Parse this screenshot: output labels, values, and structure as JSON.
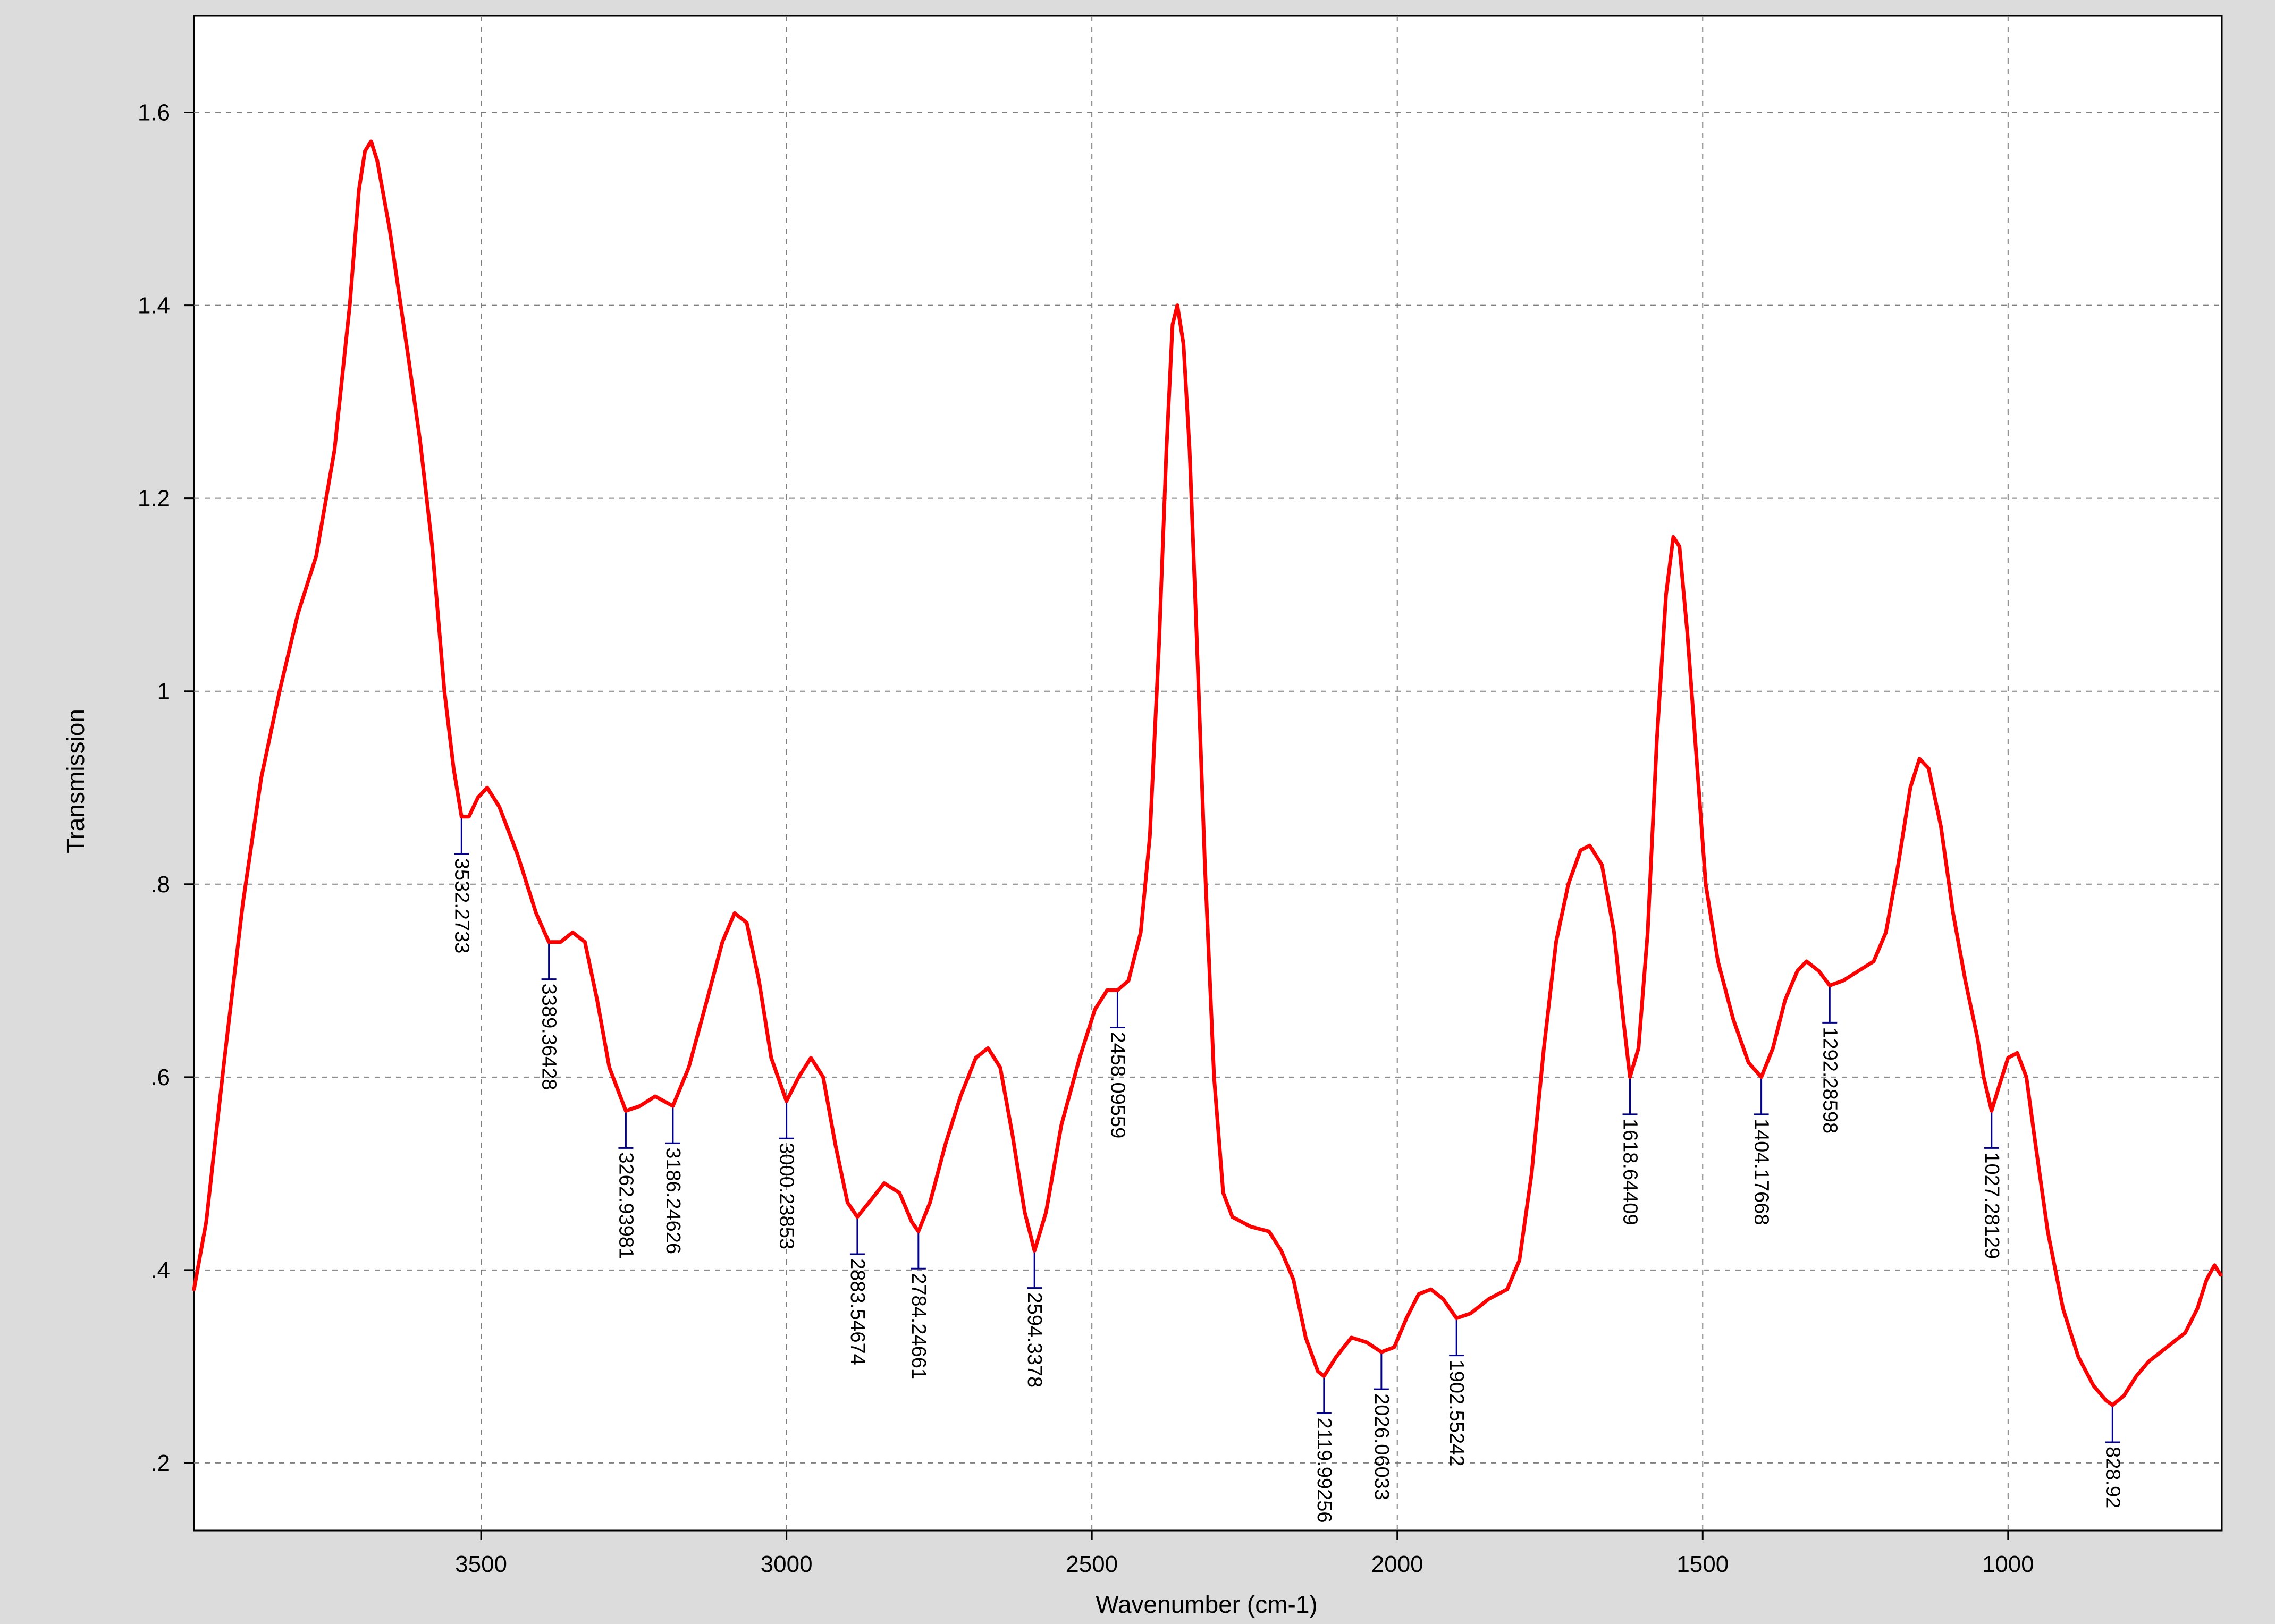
{
  "chart_data": {
    "type": "line",
    "title": "",
    "xlabel": "Wavenumber (cm-1)",
    "ylabel": "Transmission",
    "xlim": [
      3970,
      650
    ],
    "ylim": [
      0.13,
      1.7
    ],
    "x_reversed": true,
    "grid": true,
    "legend": "none",
    "x_ticks": [
      {
        "value": 3500,
        "label": "3500"
      },
      {
        "value": 3000,
        "label": "3000"
      },
      {
        "value": 2500,
        "label": "2500"
      },
      {
        "value": 2000,
        "label": "2000"
      },
      {
        "value": 1500,
        "label": "1500"
      },
      {
        "value": 1000,
        "label": "1000"
      }
    ],
    "y_ticks": [
      {
        "value": 0.2,
        "label": ".2"
      },
      {
        "value": 0.4,
        "label": ".4"
      },
      {
        "value": 0.6,
        "label": ".6"
      },
      {
        "value": 0.8,
        "label": ".8"
      },
      {
        "value": 1.0,
        "label": "1"
      },
      {
        "value": 1.2,
        "label": "1.2"
      },
      {
        "value": 1.4,
        "label": "1.4"
      },
      {
        "value": 1.6,
        "label": "1.6"
      }
    ],
    "series": [
      {
        "color": "#ff0000",
        "points": [
          [
            3970,
            0.38
          ],
          [
            3950,
            0.45
          ],
          [
            3920,
            0.62
          ],
          [
            3890,
            0.78
          ],
          [
            3860,
            0.91
          ],
          [
            3830,
            1.0
          ],
          [
            3800,
            1.08
          ],
          [
            3770,
            1.14
          ],
          [
            3740,
            1.25
          ],
          [
            3715,
            1.4
          ],
          [
            3700,
            1.52
          ],
          [
            3690,
            1.56
          ],
          [
            3680,
            1.57
          ],
          [
            3670,
            1.55
          ],
          [
            3650,
            1.48
          ],
          [
            3620,
            1.35
          ],
          [
            3600,
            1.26
          ],
          [
            3580,
            1.15
          ],
          [
            3560,
            1.0
          ],
          [
            3545,
            0.92
          ],
          [
            3532,
            0.87
          ],
          [
            3520,
            0.87
          ],
          [
            3505,
            0.89
          ],
          [
            3490,
            0.9
          ],
          [
            3470,
            0.88
          ],
          [
            3440,
            0.83
          ],
          [
            3410,
            0.77
          ],
          [
            3389,
            0.74
          ],
          [
            3370,
            0.74
          ],
          [
            3350,
            0.75
          ],
          [
            3330,
            0.74
          ],
          [
            3310,
            0.68
          ],
          [
            3290,
            0.61
          ],
          [
            3263,
            0.565
          ],
          [
            3240,
            0.57
          ],
          [
            3215,
            0.58
          ],
          [
            3186,
            0.57
          ],
          [
            3160,
            0.61
          ],
          [
            3130,
            0.68
          ],
          [
            3105,
            0.74
          ],
          [
            3085,
            0.77
          ],
          [
            3065,
            0.76
          ],
          [
            3045,
            0.7
          ],
          [
            3025,
            0.62
          ],
          [
            3000,
            0.575
          ],
          [
            2980,
            0.6
          ],
          [
            2960,
            0.62
          ],
          [
            2940,
            0.6
          ],
          [
            2920,
            0.53
          ],
          [
            2900,
            0.47
          ],
          [
            2884,
            0.455
          ],
          [
            2865,
            0.47
          ],
          [
            2840,
            0.49
          ],
          [
            2815,
            0.48
          ],
          [
            2795,
            0.45
          ],
          [
            2784,
            0.44
          ],
          [
            2765,
            0.47
          ],
          [
            2740,
            0.53
          ],
          [
            2715,
            0.58
          ],
          [
            2690,
            0.62
          ],
          [
            2670,
            0.63
          ],
          [
            2650,
            0.61
          ],
          [
            2630,
            0.54
          ],
          [
            2610,
            0.46
          ],
          [
            2594,
            0.42
          ],
          [
            2575,
            0.46
          ],
          [
            2550,
            0.55
          ],
          [
            2520,
            0.62
          ],
          [
            2495,
            0.67
          ],
          [
            2475,
            0.69
          ],
          [
            2458,
            0.69
          ],
          [
            2440,
            0.7
          ],
          [
            2420,
            0.75
          ],
          [
            2405,
            0.85
          ],
          [
            2390,
            1.05
          ],
          [
            2378,
            1.25
          ],
          [
            2368,
            1.38
          ],
          [
            2360,
            1.4
          ],
          [
            2350,
            1.36
          ],
          [
            2340,
            1.25
          ],
          [
            2328,
            1.05
          ],
          [
            2315,
            0.82
          ],
          [
            2300,
            0.6
          ],
          [
            2285,
            0.48
          ],
          [
            2270,
            0.455
          ],
          [
            2240,
            0.445
          ],
          [
            2210,
            0.44
          ],
          [
            2190,
            0.42
          ],
          [
            2170,
            0.39
          ],
          [
            2150,
            0.33
          ],
          [
            2130,
            0.295
          ],
          [
            2120,
            0.29
          ],
          [
            2100,
            0.31
          ],
          [
            2075,
            0.33
          ],
          [
            2050,
            0.325
          ],
          [
            2026,
            0.315
          ],
          [
            2005,
            0.32
          ],
          [
            1985,
            0.35
          ],
          [
            1965,
            0.375
          ],
          [
            1945,
            0.38
          ],
          [
            1925,
            0.37
          ],
          [
            1903,
            0.35
          ],
          [
            1880,
            0.355
          ],
          [
            1850,
            0.37
          ],
          [
            1820,
            0.38
          ],
          [
            1800,
            0.41
          ],
          [
            1780,
            0.5
          ],
          [
            1760,
            0.63
          ],
          [
            1740,
            0.74
          ],
          [
            1720,
            0.8
          ],
          [
            1700,
            0.835
          ],
          [
            1685,
            0.84
          ],
          [
            1665,
            0.82
          ],
          [
            1645,
            0.75
          ],
          [
            1630,
            0.66
          ],
          [
            1619,
            0.6
          ],
          [
            1605,
            0.63
          ],
          [
            1590,
            0.75
          ],
          [
            1575,
            0.95
          ],
          [
            1560,
            1.1
          ],
          [
            1548,
            1.16
          ],
          [
            1538,
            1.15
          ],
          [
            1525,
            1.06
          ],
          [
            1510,
            0.93
          ],
          [
            1495,
            0.8
          ],
          [
            1475,
            0.72
          ],
          [
            1450,
            0.66
          ],
          [
            1425,
            0.615
          ],
          [
            1404,
            0.6
          ],
          [
            1385,
            0.63
          ],
          [
            1365,
            0.68
          ],
          [
            1345,
            0.71
          ],
          [
            1330,
            0.72
          ],
          [
            1310,
            0.71
          ],
          [
            1292,
            0.695
          ],
          [
            1270,
            0.7
          ],
          [
            1245,
            0.71
          ],
          [
            1220,
            0.72
          ],
          [
            1200,
            0.75
          ],
          [
            1180,
            0.82
          ],
          [
            1160,
            0.9
          ],
          [
            1145,
            0.93
          ],
          [
            1130,
            0.92
          ],
          [
            1110,
            0.86
          ],
          [
            1090,
            0.77
          ],
          [
            1070,
            0.7
          ],
          [
            1050,
            0.64
          ],
          [
            1040,
            0.6
          ],
          [
            1027,
            0.565
          ],
          [
            1015,
            0.59
          ],
          [
            1000,
            0.62
          ],
          [
            985,
            0.625
          ],
          [
            970,
            0.6
          ],
          [
            955,
            0.53
          ],
          [
            935,
            0.44
          ],
          [
            910,
            0.36
          ],
          [
            885,
            0.31
          ],
          [
            860,
            0.28
          ],
          [
            840,
            0.265
          ],
          [
            829,
            0.26
          ],
          [
            810,
            0.27
          ],
          [
            790,
            0.29
          ],
          [
            770,
            0.305
          ],
          [
            740,
            0.32
          ],
          [
            710,
            0.335
          ],
          [
            690,
            0.36
          ],
          [
            675,
            0.39
          ],
          [
            662,
            0.405
          ],
          [
            652,
            0.395
          ]
        ]
      }
    ],
    "peak_labels": [
      {
        "x": 3532,
        "y": 0.87,
        "label": "3532.2733"
      },
      {
        "x": 3389,
        "y": 0.74,
        "label": "3389.36428"
      },
      {
        "x": 3263,
        "y": 0.565,
        "label": "3262.93981"
      },
      {
        "x": 3186,
        "y": 0.57,
        "label": "3186.24626"
      },
      {
        "x": 3000,
        "y": 0.575,
        "label": "3000.23853"
      },
      {
        "x": 2884,
        "y": 0.455,
        "label": "2883.54674"
      },
      {
        "x": 2784,
        "y": 0.44,
        "label": "2784.24661"
      },
      {
        "x": 2594,
        "y": 0.42,
        "label": "2594.3378"
      },
      {
        "x": 2458,
        "y": 0.69,
        "label": "2458.09559"
      },
      {
        "x": 2120,
        "y": 0.29,
        "label": "2119.99256"
      },
      {
        "x": 2026,
        "y": 0.315,
        "label": "2026.06033"
      },
      {
        "x": 1903,
        "y": 0.35,
        "label": "1902.55242"
      },
      {
        "x": 1619,
        "y": 0.6,
        "label": "1618.64409"
      },
      {
        "x": 1404,
        "y": 0.6,
        "label": "1404.17668"
      },
      {
        "x": 1292,
        "y": 0.695,
        "label": "1292.28598"
      },
      {
        "x": 1027,
        "y": 0.565,
        "label": "1027.28129"
      },
      {
        "x": 829,
        "y": 0.26,
        "label": "828.92"
      }
    ],
    "colors": {
      "line": "#ff0000",
      "marker": "#00008b",
      "grid": "#7f7f7f",
      "plot_background": "#ffffff",
      "frame_background": "#dcdcdc"
    }
  }
}
